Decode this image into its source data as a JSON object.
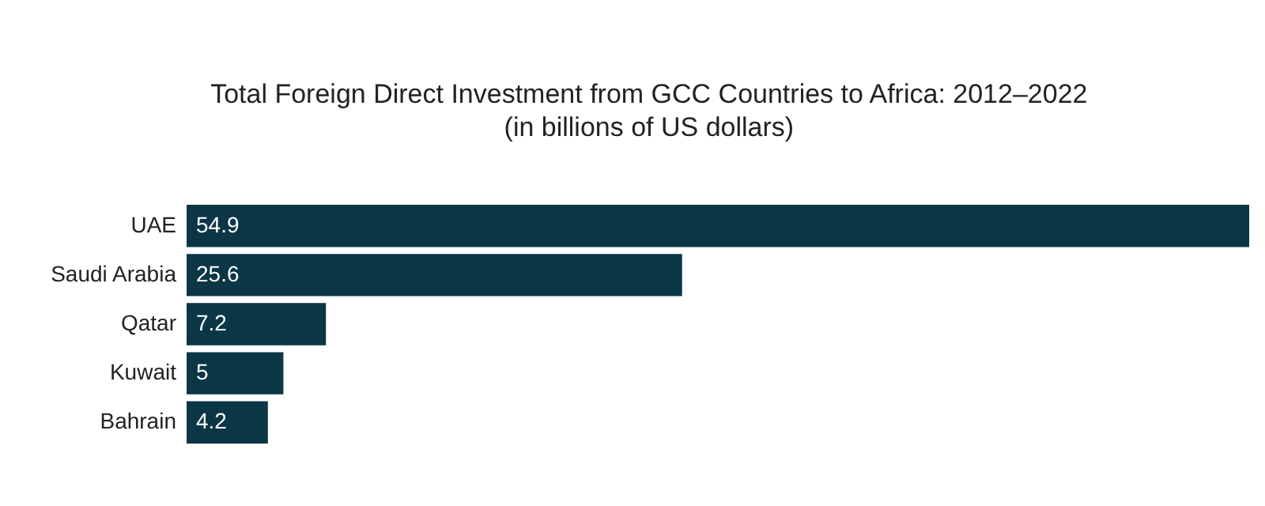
{
  "chart_data": {
    "type": "bar",
    "orientation": "horizontal",
    "title": "Total Foreign Direct Investment from GCC Countries to Africa: 2012–2022",
    "subtitle": "(in billions of US dollars)",
    "categories": [
      "UAE",
      "Saudi Arabia",
      "Qatar",
      "Kuwait",
      "Bahrain"
    ],
    "values": [
      54.9,
      25.6,
      7.2,
      5,
      4.2
    ],
    "color": "#0b3646",
    "data_labels": true
  }
}
